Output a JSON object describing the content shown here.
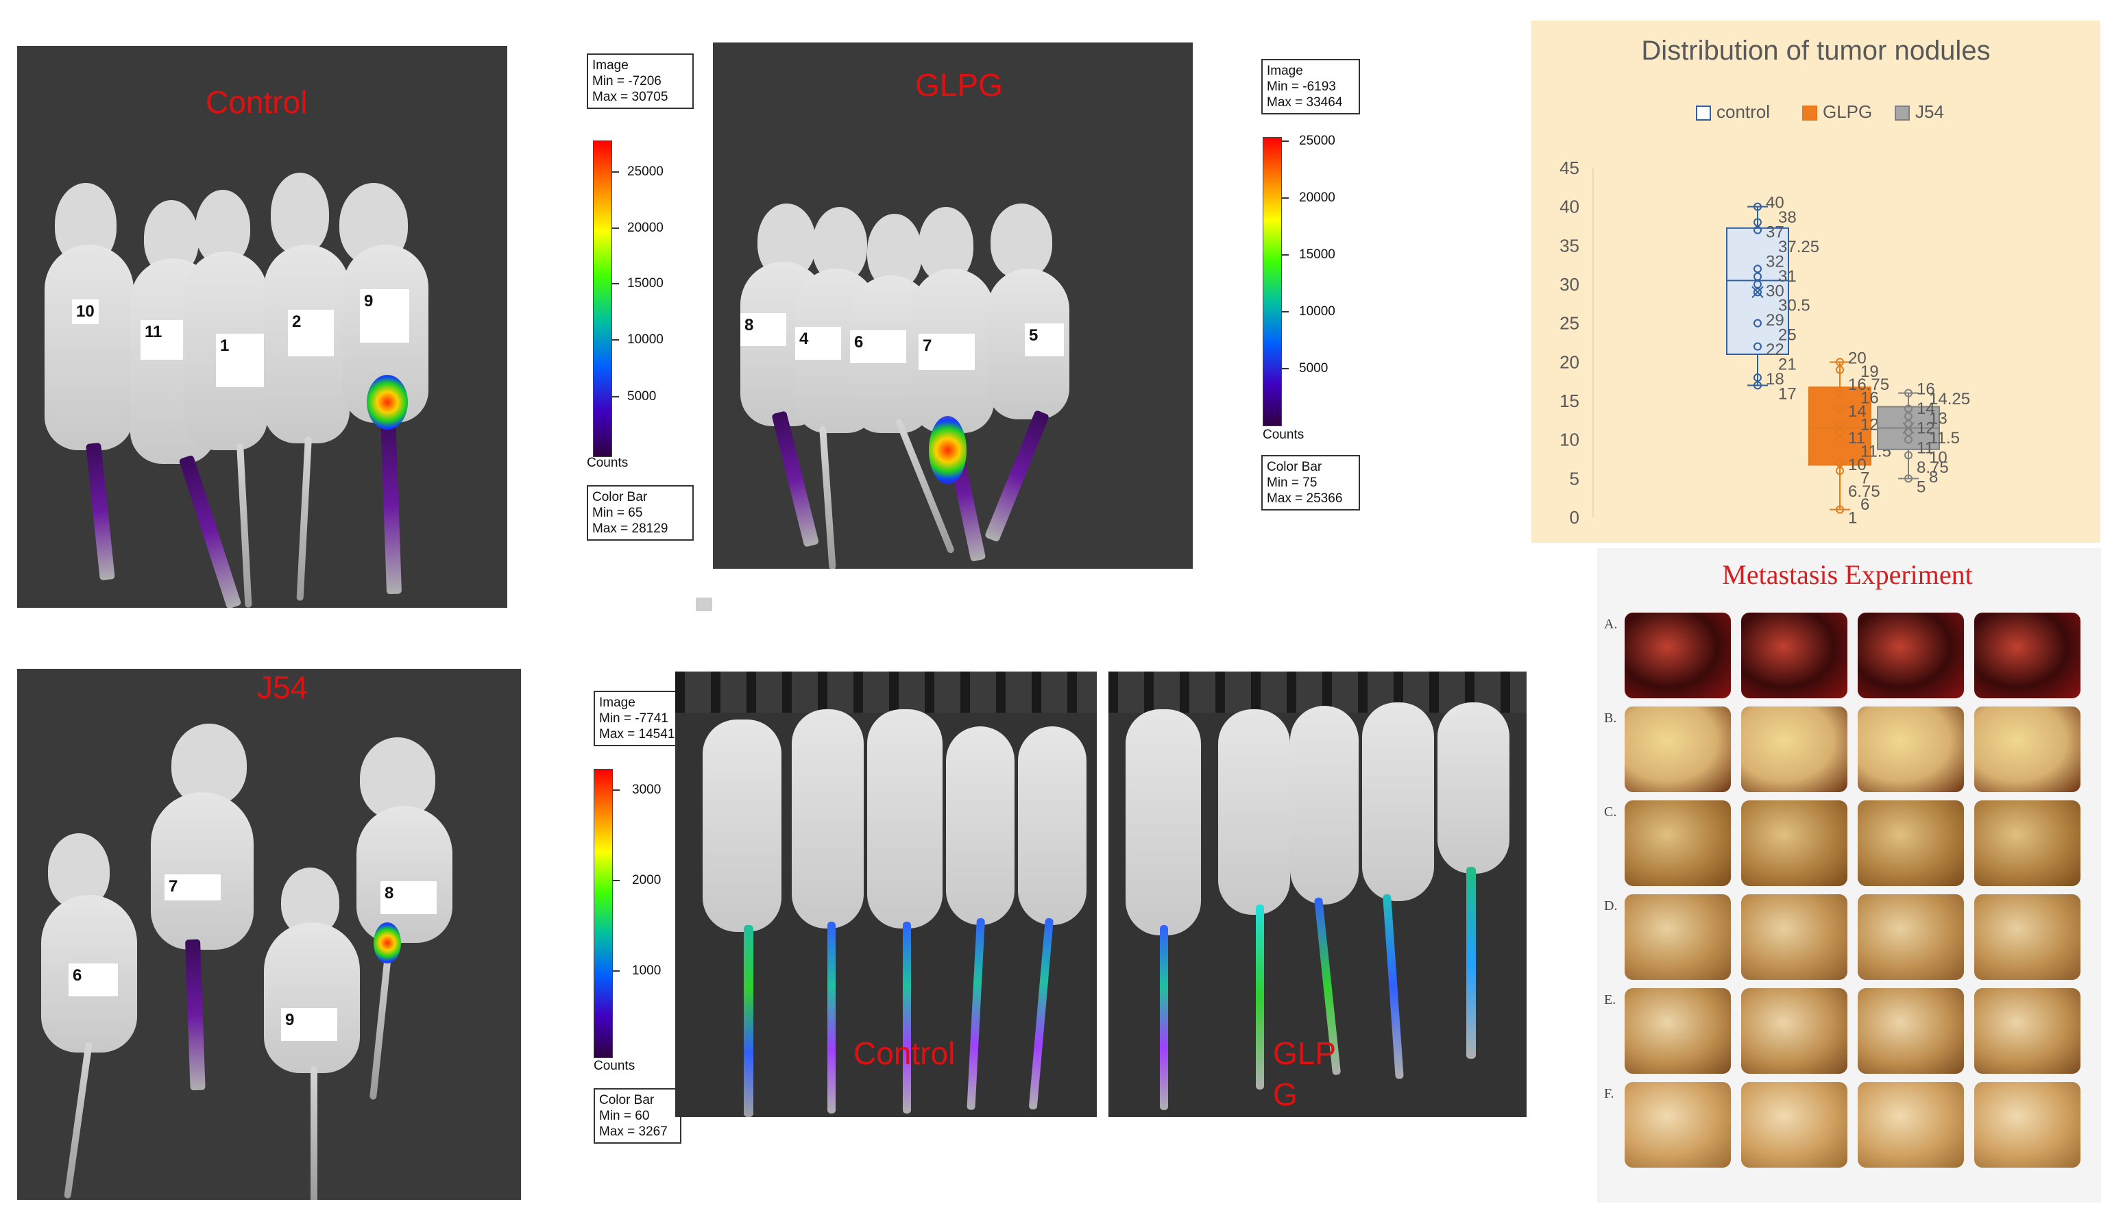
{
  "panels": {
    "control": {
      "title": "Control",
      "mouse_ids": [
        "10",
        "11",
        "1",
        "2",
        "9"
      ]
    },
    "glpg": {
      "title": "GLPG",
      "mouse_ids": [
        "8",
        "4",
        "6",
        "7",
        "5"
      ]
    },
    "j54": {
      "title": "J54",
      "mouse_ids": [
        "6",
        "7",
        "9",
        "8"
      ]
    },
    "control_small": {
      "title": "Control"
    },
    "glpg_small": {
      "title_line1": "GLP",
      "title_line2": "G"
    }
  },
  "scales": {
    "control": {
      "image_lines": [
        "Image",
        "Min = -7206",
        "Max = 30705"
      ],
      "ticks": [
        "25000",
        "20000",
        "15000",
        "10000",
        "5000"
      ],
      "counts": "Counts",
      "colorbar_lines": [
        "Color Bar",
        "Min = 65",
        "Max = 28129"
      ]
    },
    "glpg": {
      "image_lines": [
        "Image",
        "Min = -6193",
        "Max = 33464"
      ],
      "ticks": [
        "25000",
        "20000",
        "15000",
        "10000",
        "5000"
      ],
      "counts": "Counts",
      "colorbar_lines": [
        "Color Bar",
        "Min = 75",
        "Max = 25366"
      ]
    },
    "small": {
      "image_lines": [
        "Image",
        "Min = -7741",
        "Max = 14541"
      ],
      "ticks": [
        "3000",
        "2000",
        "1000"
      ],
      "counts": "Counts",
      "colorbar_lines": [
        "Color Bar",
        "Min = 60",
        "Max = 3267"
      ]
    }
  },
  "chart_data": {
    "type": "box",
    "title": "Distribution of tumor nodules",
    "ylim": [
      0,
      45
    ],
    "yticks": [
      "0",
      "5",
      "10",
      "15",
      "20",
      "25",
      "30",
      "35",
      "40",
      "45"
    ],
    "legend_position": "top",
    "series": [
      {
        "name": "control",
        "color": "#2e5fa3",
        "fill": "#dde6f3",
        "min": 17,
        "q1": 21,
        "median": 30.5,
        "q3": 37.25,
        "max": 40,
        "mean": 29,
        "points": [
          40,
          38,
          37,
          32,
          31,
          30,
          29,
          25,
          22,
          18,
          17
        ],
        "labels": [
          "40",
          "38",
          "37",
          "37.25",
          "32",
          "31",
          "30",
          "30.5",
          "29",
          "25",
          "22",
          "21",
          "18",
          "17"
        ]
      },
      {
        "name": "GLPG",
        "color": "#e57a1b",
        "fill": "#f07c22",
        "min": 1,
        "q1": 6.75,
        "median": 11.5,
        "q3": 16.75,
        "max": 20,
        "mean": 11.5,
        "points": [
          20,
          19,
          16,
          14,
          12,
          11,
          10,
          7,
          6,
          1
        ],
        "labels": [
          "20",
          "19",
          "16.75",
          "16",
          "14",
          "12",
          "11",
          "11.5",
          "10",
          "7",
          "6.75",
          "6",
          "1"
        ]
      },
      {
        "name": "J54",
        "color": "#808080",
        "fill": "#a6a6a6",
        "min": 5,
        "q1": 8.75,
        "median": 11.5,
        "q3": 14.25,
        "max": 16,
        "mean": 11.5,
        "points": [
          16,
          14,
          13,
          12,
          11,
          10,
          8,
          5
        ],
        "labels": [
          "16",
          "14.25",
          "14",
          "13",
          "12",
          "11.5",
          "11",
          "10",
          "8.75",
          "8",
          "5"
        ]
      }
    ]
  },
  "metastasis": {
    "title": "Metastasis Experiment",
    "rows": [
      "A.",
      "B.",
      "C.",
      "D.",
      "E.",
      "F."
    ]
  }
}
